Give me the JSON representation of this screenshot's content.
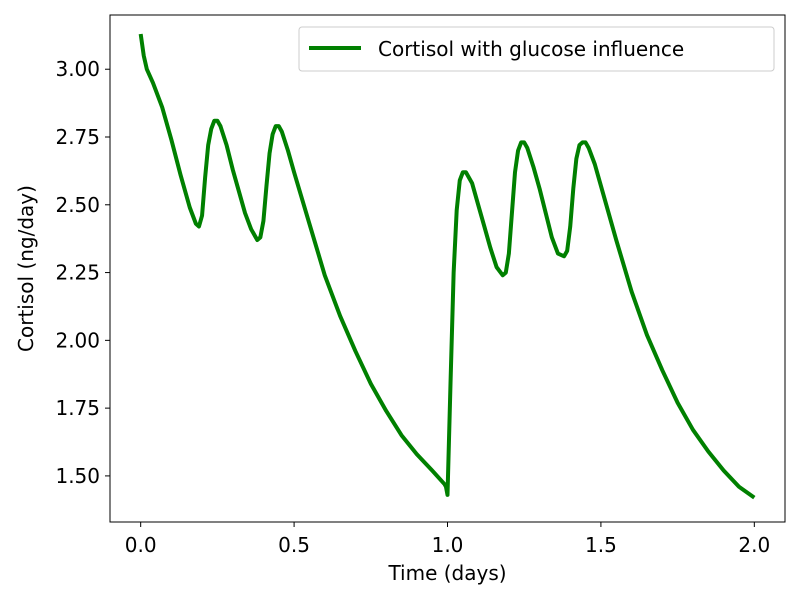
{
  "chart_data": {
    "type": "line",
    "title": "",
    "xlabel": "Time (days)",
    "ylabel": "Cortisol (ng/day)",
    "xlim": [
      -0.1,
      2.1
    ],
    "ylim": [
      1.33,
      3.2
    ],
    "xticks": [
      {
        "value": 0.0,
        "label": "0.0"
      },
      {
        "value": 0.5,
        "label": "0.5"
      },
      {
        "value": 1.0,
        "label": "1.0"
      },
      {
        "value": 1.5,
        "label": "1.5"
      },
      {
        "value": 2.0,
        "label": "2.0"
      }
    ],
    "yticks": [
      {
        "value": 1.5,
        "label": "1.50"
      },
      {
        "value": 1.75,
        "label": "1.75"
      },
      {
        "value": 2.0,
        "label": "2.00"
      },
      {
        "value": 2.25,
        "label": "2.25"
      },
      {
        "value": 2.5,
        "label": "2.50"
      },
      {
        "value": 2.75,
        "label": "2.75"
      },
      {
        "value": 3.0,
        "label": "3.00"
      }
    ],
    "grid": false,
    "legend_position": "top-right",
    "series": [
      {
        "name": "Cortisol with glucose influence",
        "color": "#008000",
        "x": [
          0.0,
          0.01,
          0.02,
          0.04,
          0.07,
          0.1,
          0.13,
          0.16,
          0.18,
          0.19,
          0.2,
          0.21,
          0.22,
          0.23,
          0.24,
          0.25,
          0.26,
          0.28,
          0.3,
          0.32,
          0.34,
          0.36,
          0.38,
          0.39,
          0.4,
          0.41,
          0.42,
          0.43,
          0.44,
          0.45,
          0.46,
          0.48,
          0.5,
          0.55,
          0.6,
          0.65,
          0.7,
          0.75,
          0.8,
          0.85,
          0.9,
          0.95,
          0.99,
          0.995,
          1.0,
          1.01,
          1.02,
          1.03,
          1.04,
          1.05,
          1.06,
          1.08,
          1.1,
          1.12,
          1.14,
          1.16,
          1.18,
          1.19,
          1.2,
          1.21,
          1.22,
          1.23,
          1.24,
          1.25,
          1.26,
          1.28,
          1.3,
          1.32,
          1.34,
          1.36,
          1.38,
          1.39,
          1.4,
          1.41,
          1.42,
          1.43,
          1.44,
          1.45,
          1.46,
          1.48,
          1.5,
          1.55,
          1.6,
          1.65,
          1.7,
          1.75,
          1.8,
          1.85,
          1.9,
          1.95,
          2.0
        ],
        "y": [
          3.13,
          3.05,
          3.0,
          2.95,
          2.86,
          2.74,
          2.61,
          2.49,
          2.43,
          2.42,
          2.46,
          2.6,
          2.72,
          2.78,
          2.81,
          2.81,
          2.79,
          2.72,
          2.63,
          2.55,
          2.47,
          2.41,
          2.37,
          2.38,
          2.44,
          2.57,
          2.69,
          2.76,
          2.79,
          2.79,
          2.77,
          2.7,
          2.62,
          2.43,
          2.24,
          2.09,
          1.96,
          1.84,
          1.74,
          1.65,
          1.58,
          1.52,
          1.47,
          1.46,
          1.43,
          1.85,
          2.25,
          2.48,
          2.59,
          2.62,
          2.62,
          2.58,
          2.5,
          2.42,
          2.34,
          2.27,
          2.24,
          2.25,
          2.32,
          2.47,
          2.62,
          2.7,
          2.73,
          2.73,
          2.71,
          2.64,
          2.56,
          2.47,
          2.38,
          2.32,
          2.31,
          2.33,
          2.42,
          2.56,
          2.67,
          2.72,
          2.73,
          2.73,
          2.71,
          2.65,
          2.57,
          2.37,
          2.18,
          2.02,
          1.89,
          1.77,
          1.67,
          1.59,
          1.52,
          1.46,
          1.42
        ]
      }
    ]
  }
}
